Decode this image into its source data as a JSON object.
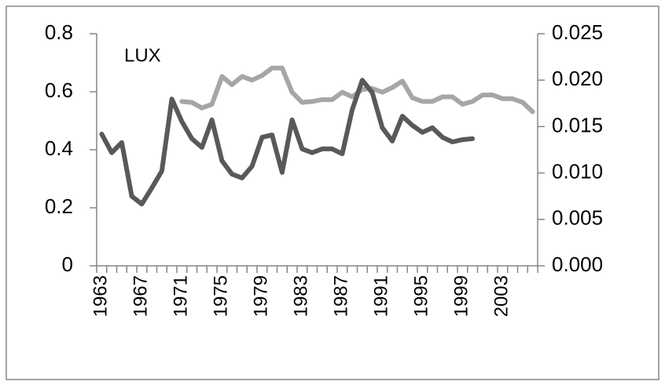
{
  "chart_data": {
    "type": "line",
    "title": "LUX",
    "categories": [
      "1963",
      null,
      null,
      null,
      "1967",
      null,
      null,
      null,
      "1971",
      null,
      null,
      null,
      "1975",
      null,
      null,
      null,
      "1979",
      null,
      null,
      null,
      "1983",
      null,
      null,
      null,
      "1987",
      null,
      null,
      null,
      "1991",
      null,
      null,
      null,
      "1995",
      null,
      null,
      null,
      "1999",
      null,
      null,
      null,
      "2003",
      null,
      null,
      null
    ],
    "series": [
      {
        "color": "#595959",
        "axis": "y",
        "values": [
          0.454,
          0.39,
          0.425,
          0.24,
          0.213,
          0.268,
          0.327,
          0.575,
          0.497,
          0.438,
          0.408,
          0.503,
          0.362,
          0.316,
          0.303,
          0.343,
          0.443,
          0.451,
          0.322,
          0.503,
          0.403,
          0.39,
          0.403,
          0.403,
          0.386,
          0.538,
          0.64,
          0.597,
          0.476,
          0.43,
          0.516,
          0.484,
          0.46,
          0.476,
          0.443,
          0.427,
          0.435,
          0.438,
          null,
          null,
          null,
          null,
          null,
          null
        ]
      },
      {
        "color": "#a6a6a6",
        "axis": "y2",
        "values": [
          null,
          null,
          null,
          null,
          null,
          null,
          null,
          null,
          0.0177,
          0.0176,
          0.017,
          0.0174,
          0.0204,
          0.0195,
          0.0204,
          0.02,
          0.0205,
          0.0213,
          0.0213,
          0.0187,
          0.0176,
          0.0177,
          0.0179,
          0.0179,
          0.0187,
          0.0182,
          0.019,
          0.0191,
          0.0187,
          0.0192,
          0.0199,
          0.0181,
          0.0177,
          0.0177,
          0.0182,
          0.0182,
          0.0174,
          0.0177,
          0.0184,
          0.0184,
          0.018,
          0.018,
          0.0176,
          0.0166
        ]
      }
    ],
    "ylim": [
      0,
      0.8
    ],
    "yticks": [
      0,
      0.2,
      0.4,
      0.6,
      0.8
    ],
    "y2lim": [
      0,
      0.025
    ],
    "y2ticks": [
      {
        "value": 0,
        "label": "0.000"
      },
      {
        "value": 0.005,
        "label": "0.005"
      },
      {
        "value": 0.01,
        "label": "0.010"
      },
      {
        "value": 0.015,
        "label": "0.015"
      },
      {
        "value": 0.02,
        "label": "0.020"
      },
      {
        "value": 0.025,
        "label": "0.025"
      }
    ],
    "grid": false
  }
}
